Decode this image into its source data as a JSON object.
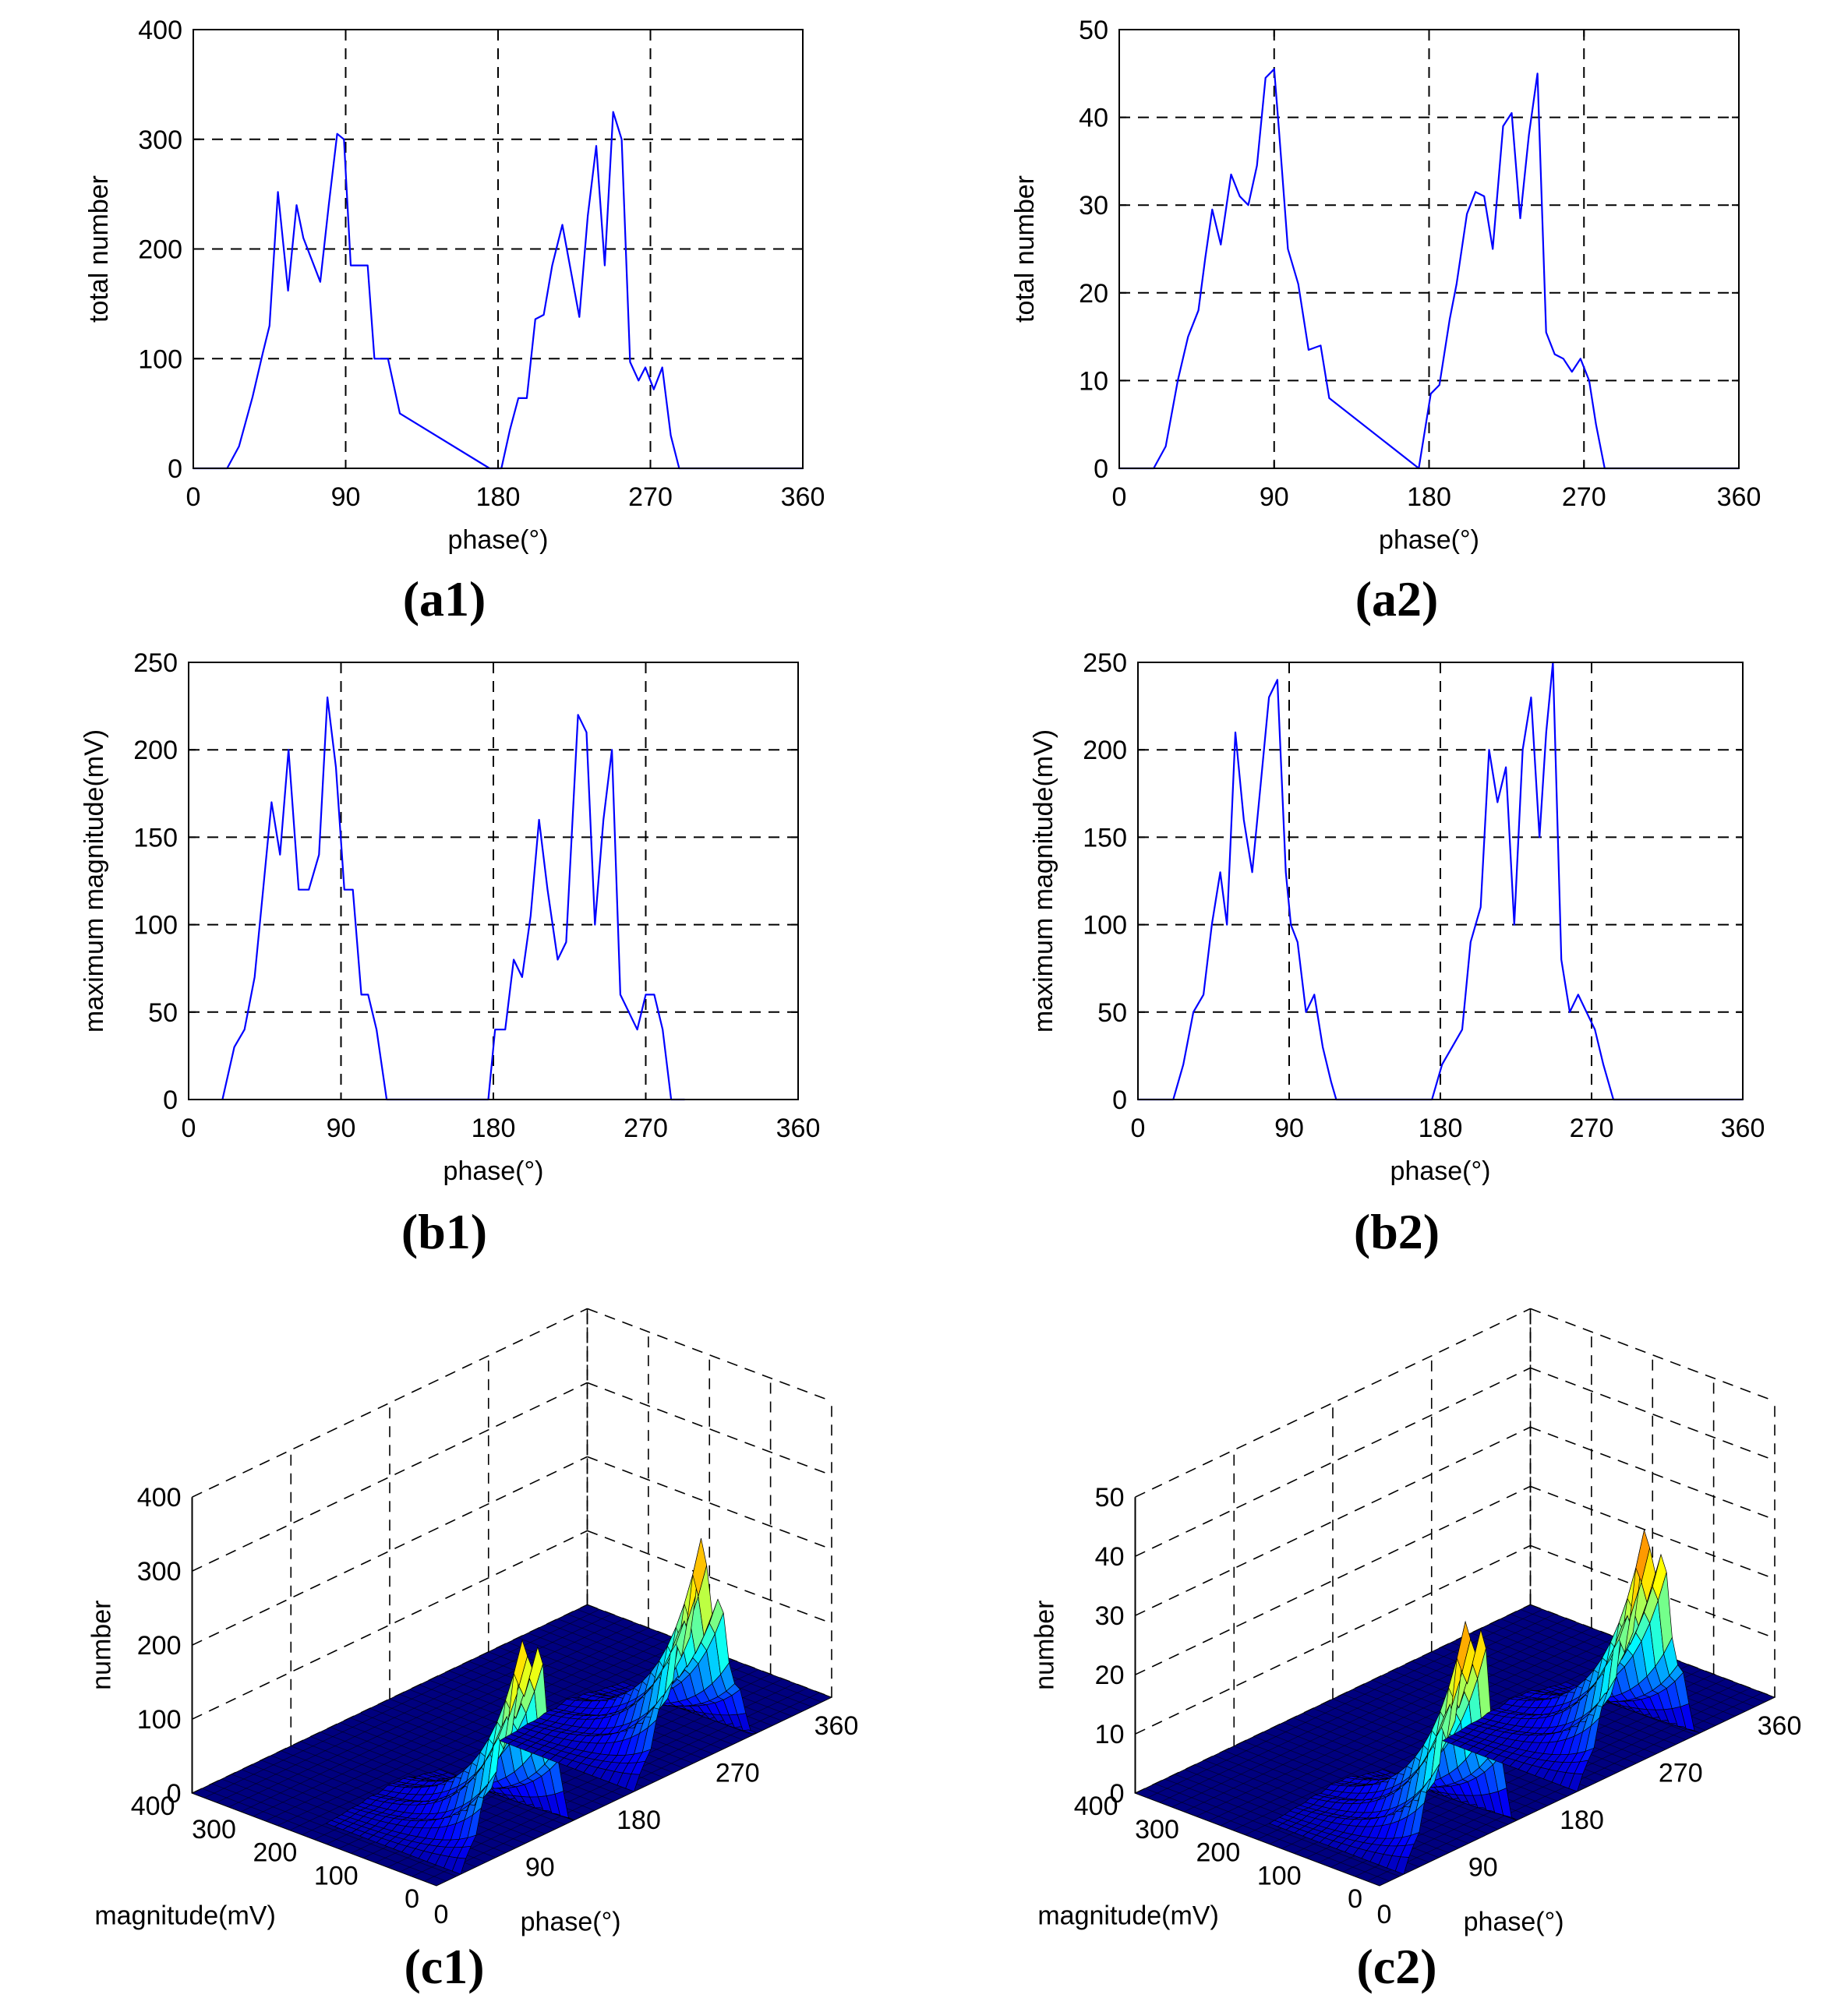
{
  "colors": {
    "line": "#0000ff",
    "axis": "#000000",
    "surface_dark": "#00007f"
  },
  "chart_data": [
    {
      "id": "a1",
      "type": "line",
      "panel_label": "(a1)",
      "xlabel": "phase(°)",
      "ylabel": "total number",
      "xlim": [
        0,
        360
      ],
      "ylim": [
        0,
        400
      ],
      "xticks": [
        0,
        90,
        180,
        270,
        360
      ],
      "yticks": [
        0,
        100,
        200,
        300,
        400
      ],
      "grid": true,
      "x": [
        0,
        20,
        27,
        35,
        41,
        45,
        50,
        56,
        61,
        65,
        70,
        75,
        80,
        85,
        89,
        93,
        97,
        103,
        107,
        115,
        122,
        175,
        182,
        187,
        192,
        197,
        202,
        207,
        212,
        218,
        223,
        228,
        233,
        238,
        243,
        248,
        253,
        258,
        263,
        267,
        272,
        277,
        282,
        287,
        292,
        360
      ],
      "y": [
        0,
        0,
        20,
        65,
        105,
        130,
        252,
        162,
        240,
        210,
        190,
        170,
        240,
        305,
        300,
        185,
        185,
        185,
        100,
        100,
        50,
        0,
        0,
        35,
        64,
        64,
        136,
        140,
        185,
        222,
        180,
        138,
        230,
        294,
        185,
        325,
        300,
        97,
        80,
        92,
        72,
        92,
        30,
        0,
        0,
        0
      ]
    },
    {
      "id": "a2",
      "type": "line",
      "panel_label": "(a2)",
      "xlabel": "phase(°)",
      "ylabel": "total number",
      "xlim": [
        0,
        360
      ],
      "ylim": [
        0,
        50
      ],
      "xticks": [
        0,
        90,
        180,
        270,
        360
      ],
      "yticks": [
        0,
        10,
        20,
        30,
        40,
        50
      ],
      "grid": true,
      "x": [
        0,
        20,
        27,
        34,
        40,
        46,
        50,
        54,
        59,
        65,
        70,
        75,
        80,
        85,
        90,
        93,
        98,
        104,
        110,
        117,
        122,
        174,
        181,
        186,
        192,
        196,
        202,
        207,
        212,
        217,
        223,
        228,
        233,
        238,
        243,
        248,
        253,
        258,
        263,
        268,
        273,
        277,
        282,
        290,
        360
      ],
      "y": [
        0,
        0,
        2.5,
        10,
        15,
        18,
        24,
        29.5,
        25.5,
        33.5,
        31,
        30,
        34.5,
        44.5,
        45.5,
        38,
        25,
        21,
        13.5,
        14,
        8,
        0,
        8.5,
        9.5,
        17,
        21,
        29,
        31.5,
        31,
        25,
        39,
        40.5,
        28.5,
        38,
        45,
        15.5,
        13,
        12.5,
        11,
        12.5,
        10,
        5,
        0,
        0,
        0
      ]
    },
    {
      "id": "b1",
      "type": "line",
      "panel_label": "(b1)",
      "xlabel": "phase(°)",
      "ylabel": "maximum magnitude(mV)",
      "xlim": [
        0,
        360
      ],
      "ylim": [
        0,
        250
      ],
      "xticks": [
        0,
        90,
        180,
        270,
        360
      ],
      "yticks": [
        0,
        50,
        100,
        150,
        200,
        250
      ],
      "grid": true,
      "x": [
        20,
        27,
        33,
        39,
        44,
        49,
        54,
        59,
        65,
        71,
        77,
        82,
        87,
        92,
        97,
        102,
        106,
        111,
        117,
        122,
        177,
        181,
        187,
        192,
        197,
        202,
        207,
        212,
        218,
        223,
        230,
        235,
        240,
        245,
        250,
        255,
        260,
        265,
        270,
        275,
        280,
        285,
        293
      ],
      "y": [
        0,
        30,
        40,
        70,
        120,
        170,
        140,
        200,
        120,
        120,
        140,
        230,
        190,
        120,
        120,
        60,
        60,
        40,
        0,
        0,
        0,
        40,
        40,
        80,
        70,
        105,
        160,
        120,
        80,
        90,
        220,
        210,
        100,
        160,
        200,
        60,
        50,
        40,
        60,
        60,
        40,
        0,
        0
      ]
    },
    {
      "id": "b2",
      "type": "line",
      "panel_label": "(b2)",
      "xlabel": "phase(°)",
      "ylabel": "maximum magnitude(mV)",
      "xlim": [
        0,
        360
      ],
      "ylim": [
        0,
        250
      ],
      "xticks": [
        0,
        90,
        180,
        270,
        360
      ],
      "yticks": [
        0,
        50,
        100,
        150,
        200,
        250
      ],
      "grid": true,
      "x": [
        0,
        21,
        27,
        33,
        39,
        44,
        49,
        53,
        58,
        63,
        68,
        73,
        78,
        83,
        88,
        91,
        95,
        100,
        105,
        110,
        115,
        118,
        122,
        175,
        181,
        187,
        193,
        198,
        204,
        209,
        214,
        219,
        224,
        229,
        234,
        239,
        243,
        247,
        252,
        257,
        262,
        267,
        272,
        277,
        283,
        290,
        360
      ],
      "y": [
        0,
        0,
        20,
        50,
        60,
        100,
        130,
        100,
        210,
        160,
        130,
        180,
        230,
        240,
        130,
        100,
        90,
        50,
        60,
        30,
        10,
        0,
        0,
        0,
        20,
        30,
        40,
        90,
        110,
        200,
        170,
        190,
        100,
        200,
        230,
        150,
        210,
        250,
        80,
        50,
        60,
        50,
        40,
        20,
        0,
        0,
        0
      ]
    },
    {
      "id": "c1",
      "type": "surface3d",
      "panel_label": "(c1)",
      "xlabel": "magnitude(mV)",
      "ylabel": "phase(°)",
      "zlabel": "number",
      "magnitude_ticks": [
        0,
        100,
        200,
        300,
        400
      ],
      "phase_ticks": [
        0,
        90,
        180,
        270,
        360
      ],
      "number_ticks": [
        0,
        100,
        200,
        300,
        400
      ],
      "zlim": [
        0,
        400
      ],
      "clusters": [
        {
          "phase": [
            22,
            125
          ],
          "phase_peak": 88,
          "peak": 330
        },
        {
          "phase": [
            180,
            292
          ],
          "phase_peak": 245,
          "peak": 320
        }
      ]
    },
    {
      "id": "c2",
      "type": "surface3d",
      "panel_label": "(c2)",
      "xlabel": "magnitude(mV)",
      "ylabel": "phase(°)",
      "zlabel": "number",
      "magnitude_ticks": [
        0,
        100,
        200,
        300,
        400
      ],
      "phase_ticks": [
        0,
        90,
        180,
        270,
        360
      ],
      "number_ticks": [
        0,
        10,
        20,
        30,
        40,
        50
      ],
      "zlim": [
        0,
        50
      ],
      "clusters": [
        {
          "phase": [
            22,
            125
          ],
          "phase_peak": 88,
          "peak": 45
        },
        {
          "phase": [
            180,
            292
          ],
          "phase_peak": 250,
          "peak": 45
        }
      ]
    }
  ]
}
